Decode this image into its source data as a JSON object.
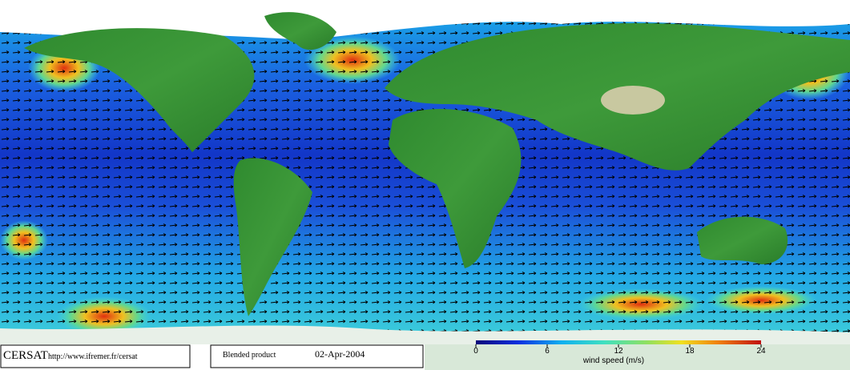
{
  "footer": {
    "brand": "CERSAT",
    "url": "http://www.ifremer.fr/cersat",
    "product": "Blended product",
    "date": "02-Apr-2004"
  },
  "colorbar": {
    "label": "wind speed (m/s)",
    "range": [
      0,
      24
    ],
    "ticks": [
      0,
      6,
      12,
      18,
      24
    ]
  }
}
